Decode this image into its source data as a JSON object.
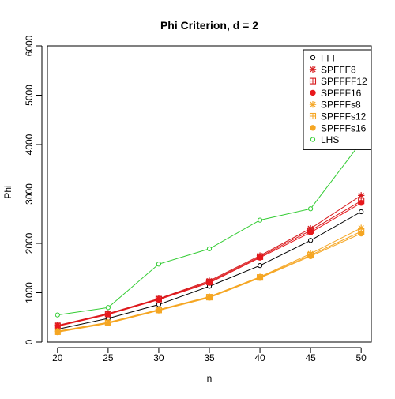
{
  "chart_data": {
    "type": "line",
    "title": "Phi Criterion, d = 2",
    "xlabel": "n",
    "ylabel": "Phi",
    "x": [
      20,
      25,
      30,
      35,
      40,
      45,
      50
    ],
    "xlim": [
      19,
      51
    ],
    "ylim": [
      0,
      6000
    ],
    "xticks": [
      "20",
      "25",
      "30",
      "35",
      "40",
      "45",
      "50"
    ],
    "yticks": [
      "0",
      "1000",
      "2000",
      "3000",
      "4000",
      "5000",
      "6000"
    ],
    "legend_position": "top-right",
    "grid": false,
    "series": [
      {
        "name": "FFF",
        "color": "#000000",
        "marker": "open-circle",
        "values": [
          260,
          480,
          760,
          1130,
          1550,
          2060,
          2640
        ]
      },
      {
        "name": "SPFFF8",
        "color": "#d7191c",
        "marker": "asterisk",
        "values": [
          340,
          580,
          880,
          1240,
          1750,
          2300,
          2970
        ]
      },
      {
        "name": "SPFFFF12",
        "color": "#d7191c",
        "marker": "square-plus",
        "values": [
          330,
          570,
          870,
          1220,
          1730,
          2260,
          2860
        ]
      },
      {
        "name": "SPFFF16",
        "color": "#e8181c",
        "marker": "filled-circle",
        "values": [
          320,
          560,
          860,
          1200,
          1710,
          2220,
          2820
        ]
      },
      {
        "name": "SPFFFs8",
        "color": "#f5a623",
        "marker": "asterisk",
        "values": [
          220,
          400,
          660,
          920,
          1320,
          1790,
          2310
        ]
      },
      {
        "name": "SPFFFs12",
        "color": "#f5a623",
        "marker": "square-plus",
        "values": [
          210,
          390,
          650,
          910,
          1310,
          1760,
          2240
        ]
      },
      {
        "name": "SPFFFs16",
        "color": "#f5a623",
        "marker": "filled-circle",
        "values": [
          200,
          380,
          640,
          900,
          1300,
          1740,
          2200
        ]
      },
      {
        "name": "LHS",
        "color": "#33cc33",
        "marker": "open-circle",
        "values": [
          550,
          700,
          1580,
          1890,
          2470,
          2700,
          4050
        ]
      }
    ]
  }
}
